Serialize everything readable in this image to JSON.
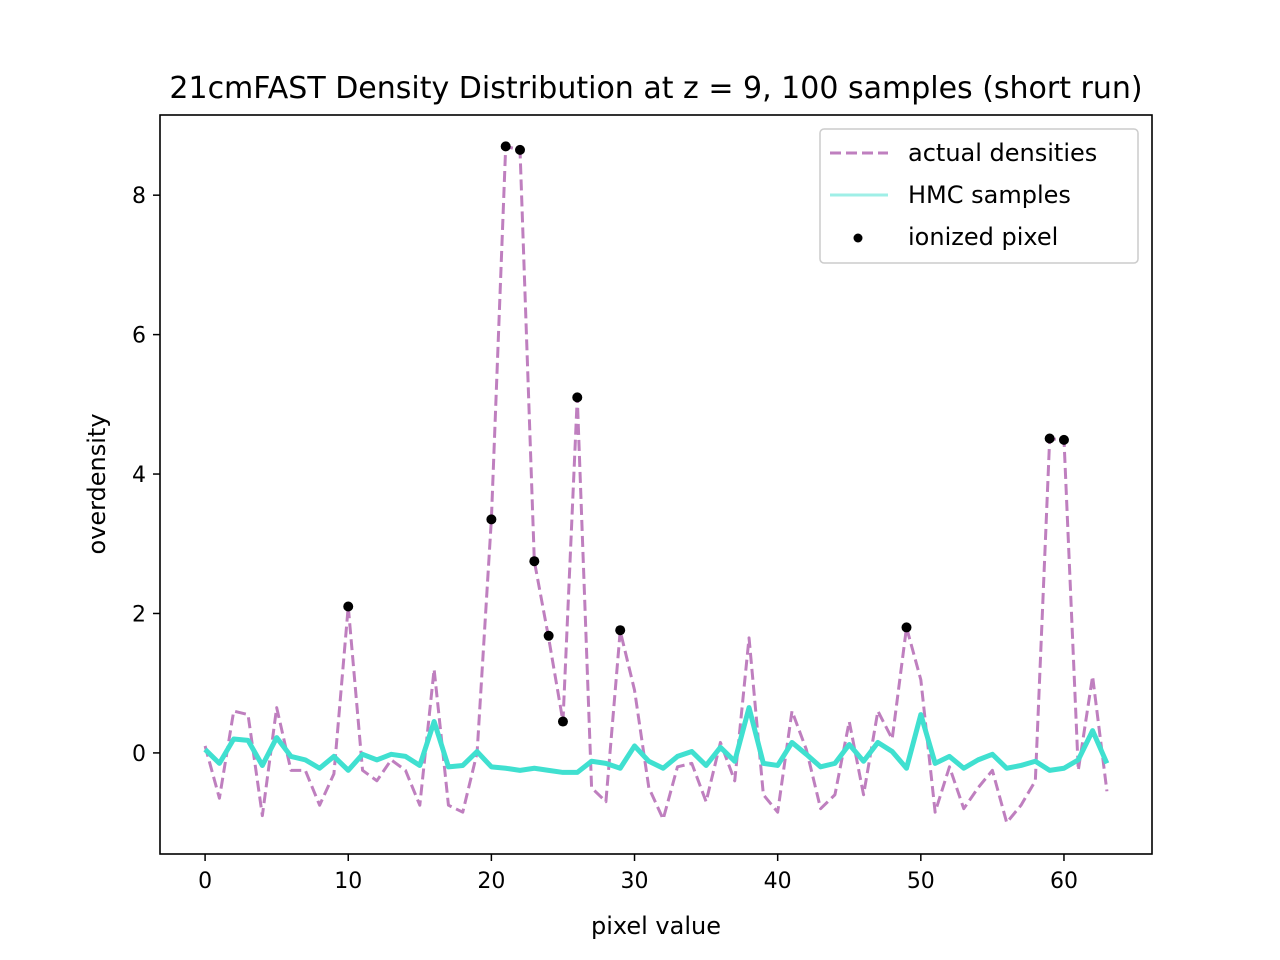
{
  "chart_data": {
    "type": "line",
    "title": "21cmFAST Density Distribution at z = 9, 100 samples (short run)",
    "xlabel": "pixel value",
    "ylabel": "overdensity",
    "xlim": [
      -3.15,
      66.15
    ],
    "ylim": [
      -1.45,
      9.15
    ],
    "xticks": [
      0,
      10,
      20,
      30,
      40,
      50,
      60
    ],
    "yticks": [
      0,
      2,
      4,
      6,
      8
    ],
    "grid": false,
    "legend_position": "top-right",
    "x": [
      0,
      1,
      2,
      3,
      4,
      5,
      6,
      7,
      8,
      9,
      10,
      11,
      12,
      13,
      14,
      15,
      16,
      17,
      18,
      19,
      20,
      21,
      22,
      23,
      24,
      25,
      26,
      27,
      28,
      29,
      30,
      31,
      32,
      33,
      34,
      35,
      36,
      37,
      38,
      39,
      40,
      41,
      42,
      43,
      44,
      45,
      46,
      47,
      48,
      49,
      50,
      51,
      52,
      53,
      54,
      55,
      56,
      57,
      58,
      59,
      60,
      61,
      62,
      63
    ],
    "series": [
      {
        "name": "actual densities",
        "style": "dashed",
        "color": "#bf7fbf",
        "values": [
          0.1,
          -0.65,
          0.6,
          0.55,
          -0.9,
          0.65,
          -0.25,
          -0.25,
          -0.75,
          -0.3,
          2.1,
          -0.25,
          -0.4,
          -0.1,
          -0.25,
          -0.75,
          1.2,
          -0.75,
          -0.85,
          0.0,
          3.35,
          8.7,
          8.65,
          2.75,
          1.65,
          0.45,
          5.1,
          -0.5,
          -0.7,
          1.75,
          0.9,
          -0.5,
          -0.95,
          -0.2,
          -0.15,
          -0.7,
          0.15,
          -0.4,
          1.65,
          -0.6,
          -0.85,
          0.6,
          0.05,
          -0.8,
          -0.6,
          0.45,
          -0.6,
          0.6,
          0.2,
          1.8,
          1.05,
          -0.85,
          -0.2,
          -0.8,
          -0.5,
          -0.25,
          -1.0,
          -0.75,
          -0.4,
          4.5,
          4.5,
          -0.25,
          1.1,
          -0.55
        ]
      },
      {
        "name": "HMC samples",
        "style": "solid",
        "color": "#40e0d0",
        "values": [
          0.05,
          -0.15,
          0.2,
          0.18,
          -0.18,
          0.22,
          -0.05,
          -0.1,
          -0.22,
          -0.05,
          -0.25,
          -0.02,
          -0.1,
          -0.02,
          -0.05,
          -0.18,
          0.45,
          -0.2,
          -0.18,
          0.02,
          -0.2,
          -0.22,
          -0.25,
          -0.22,
          -0.25,
          -0.28,
          -0.28,
          -0.12,
          -0.15,
          -0.22,
          0.1,
          -0.12,
          -0.22,
          -0.05,
          0.02,
          -0.18,
          0.08,
          -0.12,
          0.65,
          -0.15,
          -0.18,
          0.15,
          -0.02,
          -0.2,
          -0.15,
          0.12,
          -0.12,
          0.15,
          0.02,
          -0.22,
          0.55,
          -0.15,
          -0.05,
          -0.22,
          -0.1,
          -0.02,
          -0.22,
          -0.18,
          -0.12,
          -0.25,
          -0.22,
          -0.1,
          0.32,
          -0.15
        ]
      }
    ],
    "ionized_pixel": {
      "name": "ionized pixel",
      "color": "#000000",
      "x": [
        10,
        20,
        21,
        22,
        23,
        24,
        25,
        26,
        29,
        49,
        59,
        60
      ],
      "y": [
        2.1,
        3.35,
        8.7,
        8.65,
        2.75,
        1.68,
        0.45,
        5.1,
        1.76,
        1.8,
        4.51,
        4.49
      ]
    }
  }
}
